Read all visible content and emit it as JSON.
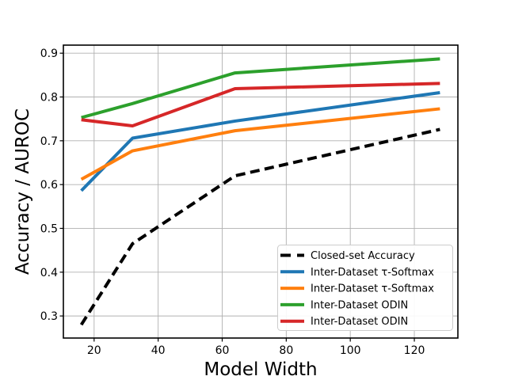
{
  "chart_data": {
    "type": "line",
    "title": "",
    "xlabel": "Model Width",
    "ylabel": "Accuracy / AUROC",
    "x": [
      16,
      32,
      64,
      128
    ],
    "series": [
      {
        "name": "Closed-set Accuracy",
        "color": "#000000",
        "style": "dashed",
        "values": [
          0.28,
          0.465,
          0.62,
          0.726
        ]
      },
      {
        "name": "Inter-Dataset τ-Softmax",
        "color": "#1f77b4",
        "style": "solid",
        "values": [
          0.586,
          0.706,
          0.745,
          0.81
        ]
      },
      {
        "name": "Inter-Dataset τ-Softmax",
        "color": "#ff7f0e",
        "style": "solid",
        "values": [
          0.612,
          0.677,
          0.723,
          0.773
        ]
      },
      {
        "name": "Inter-Dataset ODIN",
        "color": "#2ca02c",
        "style": "solid",
        "values": [
          0.753,
          0.785,
          0.855,
          0.887
        ]
      },
      {
        "name": "Inter-Dataset ODIN",
        "color": "#d62728",
        "style": "solid",
        "values": [
          0.748,
          0.734,
          0.819,
          0.831
        ]
      }
    ],
    "xticks": [
      20,
      40,
      60,
      80,
      100,
      120
    ],
    "yticks": [
      0.3,
      0.4,
      0.5,
      0.6,
      0.7,
      0.8,
      0.9
    ],
    "xlim": [
      10.4,
      133.6
    ],
    "ylim": [
      0.2496,
      0.9184
    ],
    "grid": true,
    "grid_color": "#b0b0b0",
    "frame_color": "#000000",
    "legend_position": "lower right",
    "legend_border_color": "#cccccc",
    "background_color": "#ffffff"
  }
}
